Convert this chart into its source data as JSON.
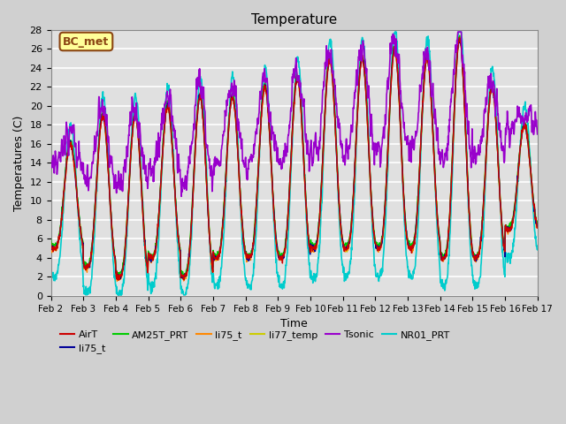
{
  "title": "Temperature",
  "xlabel": "Time",
  "ylabel": "Temperatures (C)",
  "ylim": [
    0,
    28
  ],
  "xlim": [
    0,
    15
  ],
  "annotation_text": "BC_met",
  "annotation_bg": "#FFFF99",
  "annotation_border": "#8B4513",
  "series": {
    "AirT": {
      "color": "#CC0000",
      "lw": 1.0
    },
    "li75_t_blue": {
      "color": "#000099",
      "lw": 1.0
    },
    "AM25T_PRT": {
      "color": "#00CC00",
      "lw": 1.0
    },
    "li75_t_orange": {
      "color": "#FF8800",
      "lw": 1.0
    },
    "li77_temp": {
      "color": "#CCCC00",
      "lw": 1.2
    },
    "Tsonic": {
      "color": "#9900CC",
      "lw": 1.2
    },
    "NR01_PRT": {
      "color": "#00CCCC",
      "lw": 1.2
    }
  },
  "xtick_labels": [
    "Feb 2",
    "Feb 3",
    "Feb 4",
    "Feb 5",
    "Feb 6",
    "Feb 7",
    "Feb 8",
    "Feb 9",
    "Feb 10",
    "Feb 11",
    "Feb 12",
    "Feb 13",
    "Feb 14",
    "Feb 15",
    "Feb 16",
    "Feb 17"
  ],
  "xtick_positions": [
    0,
    1,
    2,
    3,
    4,
    5,
    6,
    7,
    8,
    9,
    10,
    11,
    12,
    13,
    14,
    15
  ],
  "ytick_positions": [
    0,
    2,
    4,
    6,
    8,
    10,
    12,
    14,
    16,
    18,
    20,
    22,
    24,
    26,
    28
  ]
}
